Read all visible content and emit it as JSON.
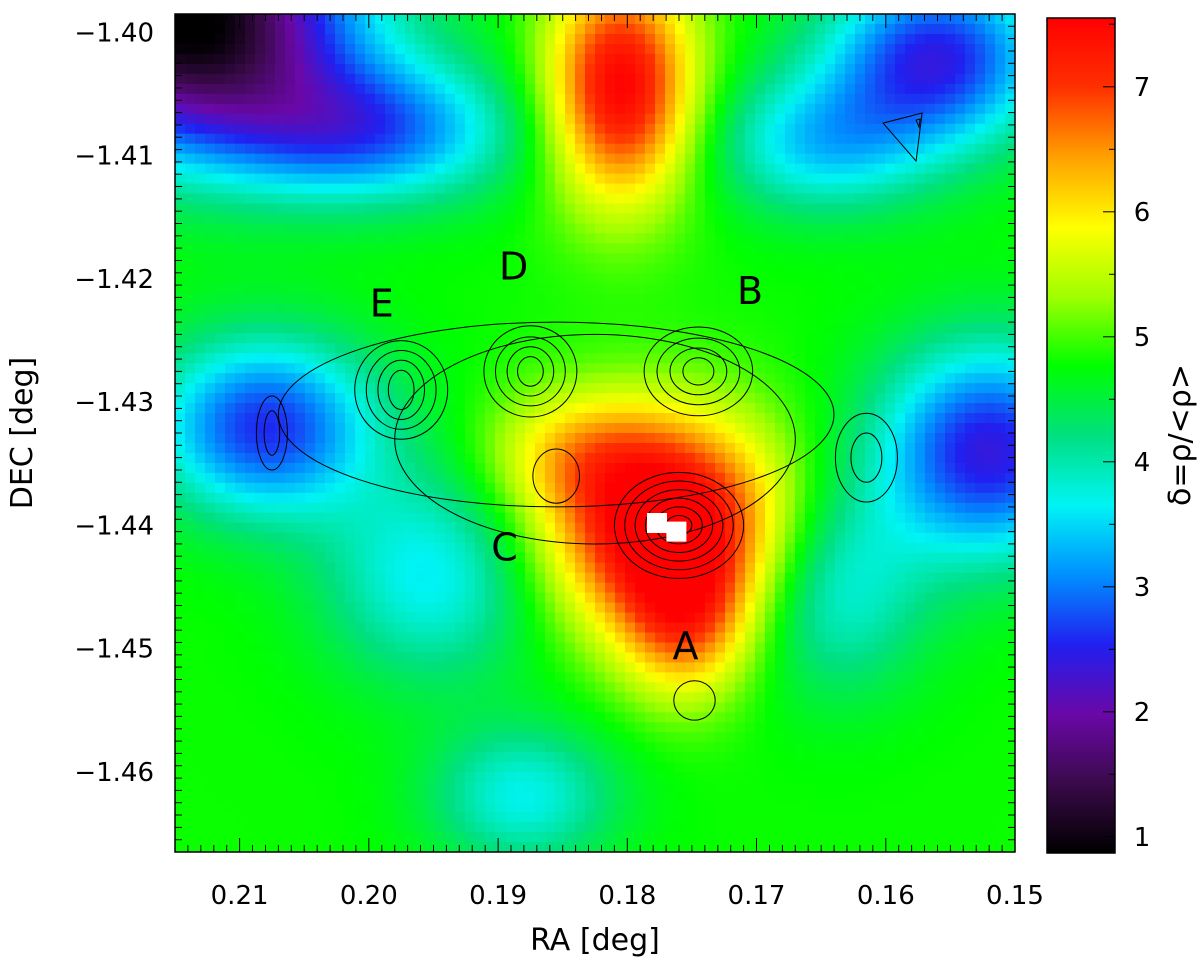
{
  "chart_data": [
    {
      "type": "heatmap",
      "title": "",
      "xlabel": "RA [deg]",
      "ylabel": "DEC [deg]",
      "xlim": [
        0.215,
        0.15
      ],
      "ylim": [
        -1.4665,
        -1.3985
      ],
      "x_ticks": [
        {
          "value": 0.21,
          "label": "0.21"
        },
        {
          "value": 0.2,
          "label": "0.20"
        },
        {
          "value": 0.19,
          "label": "0.19"
        },
        {
          "value": 0.18,
          "label": "0.18"
        },
        {
          "value": 0.17,
          "label": "0.17"
        },
        {
          "value": 0.16,
          "label": "0.16"
        },
        {
          "value": 0.15,
          "label": "0.15"
        }
      ],
      "y_ticks": [
        {
          "value": -1.4,
          "label": "−1.40"
        },
        {
          "value": -1.41,
          "label": "−1.41"
        },
        {
          "value": -1.42,
          "label": "−1.42"
        },
        {
          "value": -1.43,
          "label": "−1.43"
        },
        {
          "value": -1.44,
          "label": "−1.44"
        },
        {
          "value": -1.45,
          "label": "−1.45"
        },
        {
          "value": -1.46,
          "label": "−1.46"
        }
      ],
      "background": 4.8,
      "density_peaks": [
        {
          "ra": 0.1805,
          "dec": -1.4045,
          "amp": 2.8,
          "sx": 0.004,
          "sy": 0.0065
        },
        {
          "ra": 0.177,
          "dec": -1.44,
          "amp": 3.2,
          "sx": 0.0065,
          "sy": 0.006
        },
        {
          "ra": 0.1755,
          "dec": -1.448,
          "amp": 1.4,
          "sx": 0.0035,
          "sy": 0.0045
        },
        {
          "ra": 0.184,
          "dec": -1.434,
          "amp": 0.9,
          "sx": 0.005,
          "sy": 0.0035
        },
        {
          "ra": 0.214,
          "dec": -1.399,
          "amp": -4.0,
          "sx": 0.009,
          "sy": 0.007
        },
        {
          "ra": 0.208,
          "dec": -1.432,
          "amp": -2.2,
          "sx": 0.006,
          "sy": 0.005
        },
        {
          "ra": 0.152,
          "dec": -1.434,
          "amp": -2.4,
          "sx": 0.006,
          "sy": 0.006
        },
        {
          "ra": 0.156,
          "dec": -1.402,
          "amp": -2.3,
          "sx": 0.006,
          "sy": 0.005
        },
        {
          "ra": 0.2,
          "dec": -1.408,
          "amp": -1.8,
          "sx": 0.008,
          "sy": 0.004
        },
        {
          "ra": 0.165,
          "dec": -1.409,
          "amp": -1.3,
          "sx": 0.006,
          "sy": 0.004
        },
        {
          "ra": 0.195,
          "dec": -1.444,
          "amp": -1.2,
          "sx": 0.006,
          "sy": 0.006
        },
        {
          "ra": 0.164,
          "dec": -1.445,
          "amp": -1.1,
          "sx": 0.005,
          "sy": 0.006
        },
        {
          "ra": 0.188,
          "dec": -1.462,
          "amp": -1.1,
          "sx": 0.005,
          "sy": 0.004
        }
      ],
      "contour_groups": [
        {
          "name": "A",
          "ra": 0.176,
          "dec": -1.44,
          "rx": [
            0.001,
            0.0018,
            0.0026,
            0.0034,
            0.0042,
            0.005
          ],
          "ry": [
            0.0008,
            0.0015,
            0.0022,
            0.0029,
            0.0036,
            0.0043
          ]
        },
        {
          "name": "B",
          "ra": 0.1745,
          "dec": -1.4275,
          "rx": [
            0.0012,
            0.0022,
            0.0032,
            0.0042
          ],
          "ry": [
            0.0011,
            0.0019,
            0.0027,
            0.0036
          ]
        },
        {
          "name": "D",
          "ra": 0.1875,
          "dec": -1.4275,
          "rx": [
            0.001,
            0.0018,
            0.0027,
            0.0036
          ],
          "ry": [
            0.0012,
            0.002,
            0.0028,
            0.0037
          ]
        },
        {
          "name": "E",
          "ra": 0.1975,
          "dec": -1.429,
          "rx": [
            0.001,
            0.0018,
            0.0027,
            0.0036
          ],
          "ry": [
            0.0016,
            0.0024,
            0.0032,
            0.004
          ]
        },
        {
          "name": "west-clump",
          "ra": 0.2075,
          "dec": -1.4325,
          "rx": [
            0.0006,
            0.0012
          ],
          "ry": [
            0.0018,
            0.003
          ]
        },
        {
          "name": "east-clump",
          "ra": 0.1615,
          "dec": -1.4345,
          "rx": [
            0.0012,
            0.0024
          ],
          "ry": [
            0.002,
            0.0036
          ]
        },
        {
          "name": "south-clump",
          "ra": 0.1748,
          "dec": -1.4542,
          "rx": [
            0.0016
          ],
          "ry": [
            0.0016
          ]
        },
        {
          "name": "C",
          "ra": 0.1855,
          "dec": -1.436,
          "rx": [
            0.0018
          ],
          "ry": [
            0.0022
          ]
        },
        {
          "name": "envelope-1",
          "ra": 0.1825,
          "dec": -1.433,
          "rx": [
            0.0155
          ],
          "ry": [
            0.0085
          ]
        },
        {
          "name": "envelope-2",
          "ra": 0.1855,
          "dec": -1.431,
          "rx": [
            0.0215
          ],
          "ry": [
            0.0075
          ]
        }
      ],
      "labels": [
        {
          "text": "A",
          "ra": 0.1755,
          "dec": -1.45
        },
        {
          "text": "B",
          "ra": 0.1705,
          "dec": -1.4212
        },
        {
          "text": "C",
          "ra": 0.1895,
          "dec": -1.442
        },
        {
          "text": "D",
          "ra": 0.1888,
          "dec": -1.4192
        },
        {
          "text": "E",
          "ra": 0.199,
          "dec": -1.4222
        }
      ],
      "markers": [
        {
          "name": "centre-square",
          "ra": 0.1777,
          "dec": -1.4398
        },
        {
          "name": "centre-square",
          "ra": 0.1762,
          "dec": -1.4405
        }
      ],
      "small_contour": {
        "ra": 0.1575,
        "dec": -1.408
      }
    },
    {
      "type": "colorbar",
      "label": "δ=ρ/<ρ>",
      "range": [
        0.87,
        7.55
      ],
      "ticks": [
        {
          "value": 1,
          "label": "1"
        },
        {
          "value": 2,
          "label": "2"
        },
        {
          "value": 3,
          "label": "3"
        },
        {
          "value": 4,
          "label": "4"
        },
        {
          "value": 5,
          "label": "5"
        },
        {
          "value": 6,
          "label": "6"
        },
        {
          "value": 7,
          "label": "7"
        }
      ],
      "colormap": [
        "#000000",
        "#3a0a4a",
        "#6a08a8",
        "#2020f0",
        "#0090ff",
        "#00f4f4",
        "#00e080",
        "#00ff00",
        "#a0ff00",
        "#ffff00",
        "#ffa000",
        "#ff3000",
        "#ff0000"
      ]
    }
  ]
}
